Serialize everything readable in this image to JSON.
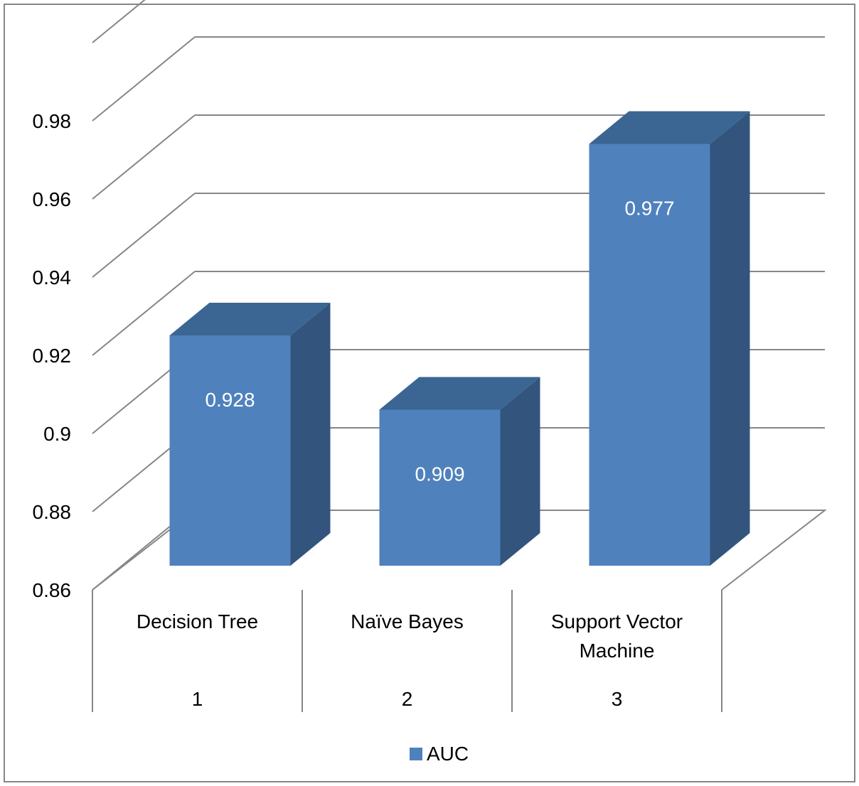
{
  "chart_data": {
    "type": "bar",
    "title": "",
    "xlabel": "",
    "ylabel": "",
    "ylim": [
      0.86,
      0.98
    ],
    "ytick_labels": [
      "0.86",
      "0.88",
      "0.9",
      "0.92",
      "0.94",
      "0.96",
      "0.98"
    ],
    "yticks": [
      0.86,
      0.88,
      0.9,
      0.92,
      0.94,
      0.96,
      0.98,
      1.0
    ],
    "categories": [
      {
        "name": [
          "Decision Tree"
        ],
        "index": "1"
      },
      {
        "name": [
          "Naïve Bayes"
        ],
        "index": "2"
      },
      {
        "name": [
          "Support Vector",
          "Machine"
        ],
        "index": "3"
      }
    ],
    "series": [
      {
        "name": "AUC",
        "values": [
          0.928,
          0.909,
          0.977
        ],
        "labels": [
          "0.928",
          "0.909",
          "0.977"
        ]
      }
    ],
    "legend": {
      "position": "bottom",
      "entries": [
        "AUC"
      ]
    },
    "grid": true,
    "style": "3d-column",
    "colors": {
      "bar_front": "#4f81bd",
      "bar_top": "#3b6592",
      "bar_side": "#33547c",
      "grid": "#868686",
      "text": "#000000",
      "data_label": "#ffffff"
    }
  }
}
